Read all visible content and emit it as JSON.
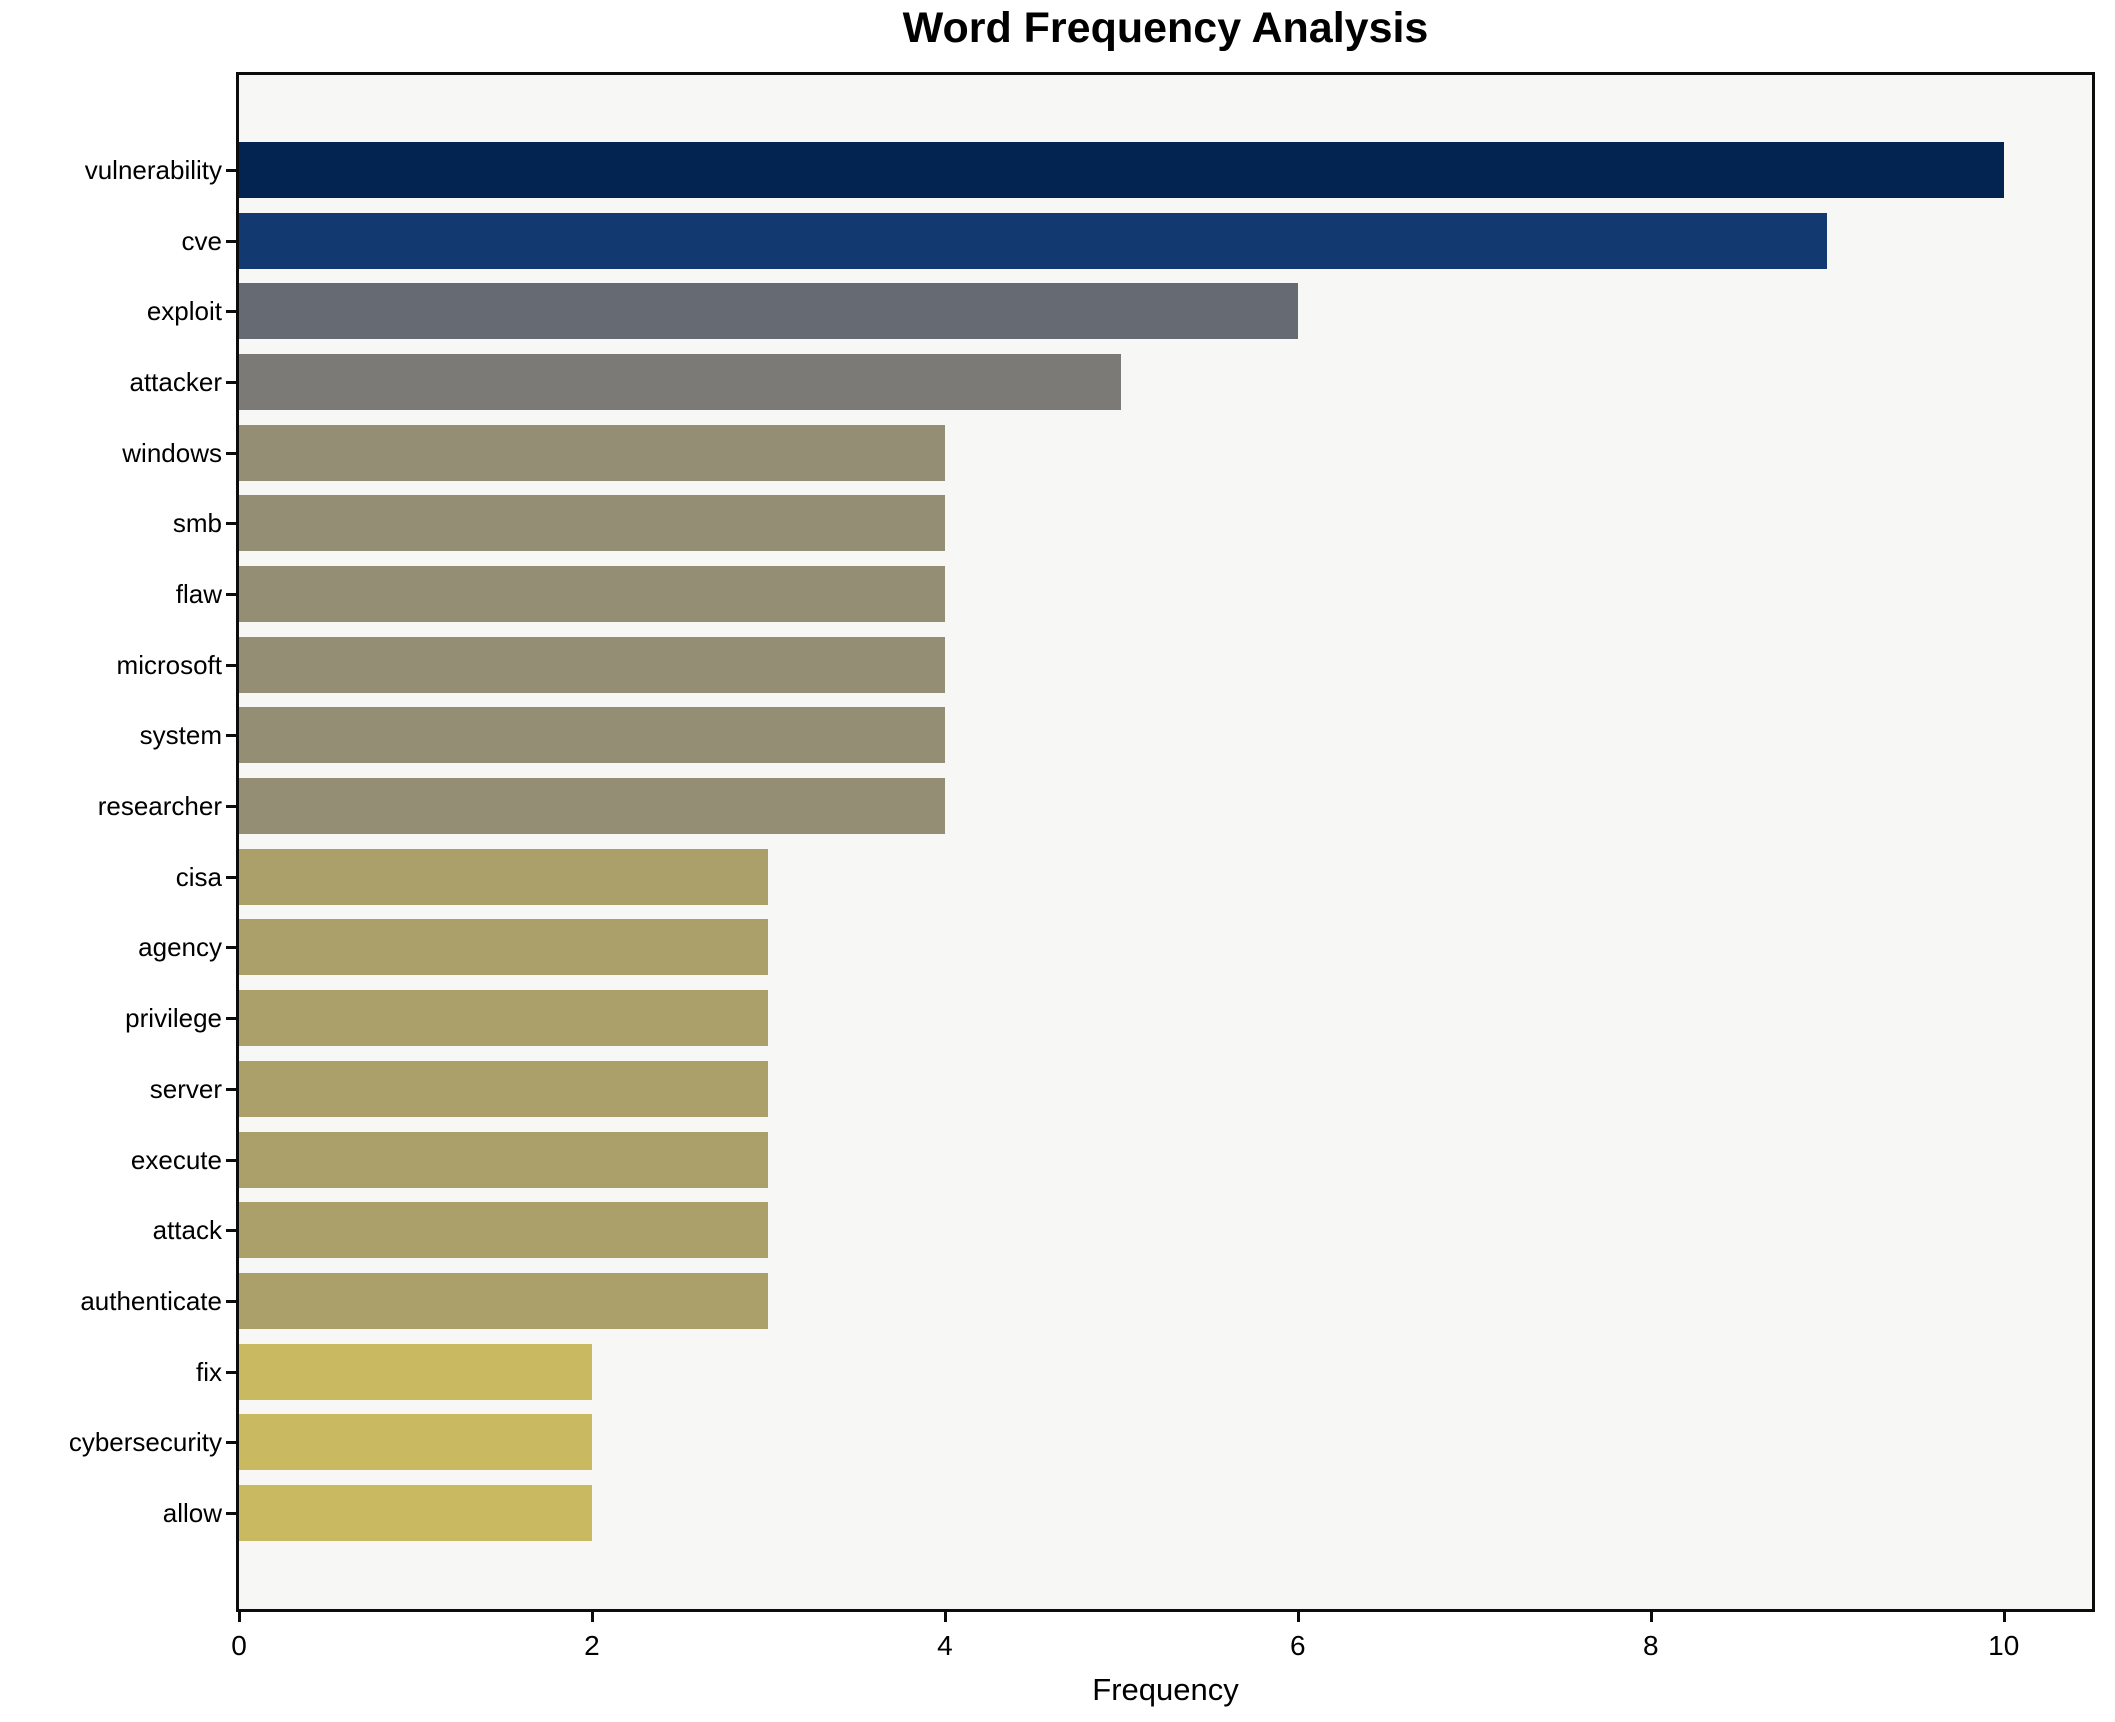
{
  "chart": {
    "title": "Word Frequency Analysis",
    "xlabel": "Frequency"
  },
  "chart_data": {
    "type": "bar",
    "orientation": "horizontal",
    "title": "Word Frequency Analysis",
    "xlabel": "Frequency",
    "ylabel": "",
    "categories": [
      "vulnerability",
      "cve",
      "exploit",
      "attacker",
      "windows",
      "smb",
      "flaw",
      "microsoft",
      "system",
      "researcher",
      "cisa",
      "agency",
      "privilege",
      "server",
      "execute",
      "attack",
      "authenticate",
      "fix",
      "cybersecurity",
      "allow"
    ],
    "values": [
      10,
      9,
      6,
      5,
      4,
      4,
      4,
      4,
      4,
      4,
      3,
      3,
      3,
      3,
      3,
      3,
      3,
      2,
      2,
      2
    ],
    "bar_colors": [
      "#032350",
      "#123a70",
      "#656a73",
      "#7b7a76",
      "#948e74",
      "#948e74",
      "#948e74",
      "#948e74",
      "#948e74",
      "#948e74",
      "#aca06a",
      "#aca06a",
      "#aca06a",
      "#aca06a",
      "#aca06a",
      "#aca06a",
      "#aca06a",
      "#c9ba62",
      "#c9ba62",
      "#c9ba62"
    ],
    "xlim": [
      0,
      10.5
    ],
    "xticks": [
      0,
      2,
      4,
      6,
      8,
      10
    ],
    "grid": false,
    "legend": null,
    "plot_background": "#f7f7f5",
    "spine_color": "#0c0c0c"
  }
}
